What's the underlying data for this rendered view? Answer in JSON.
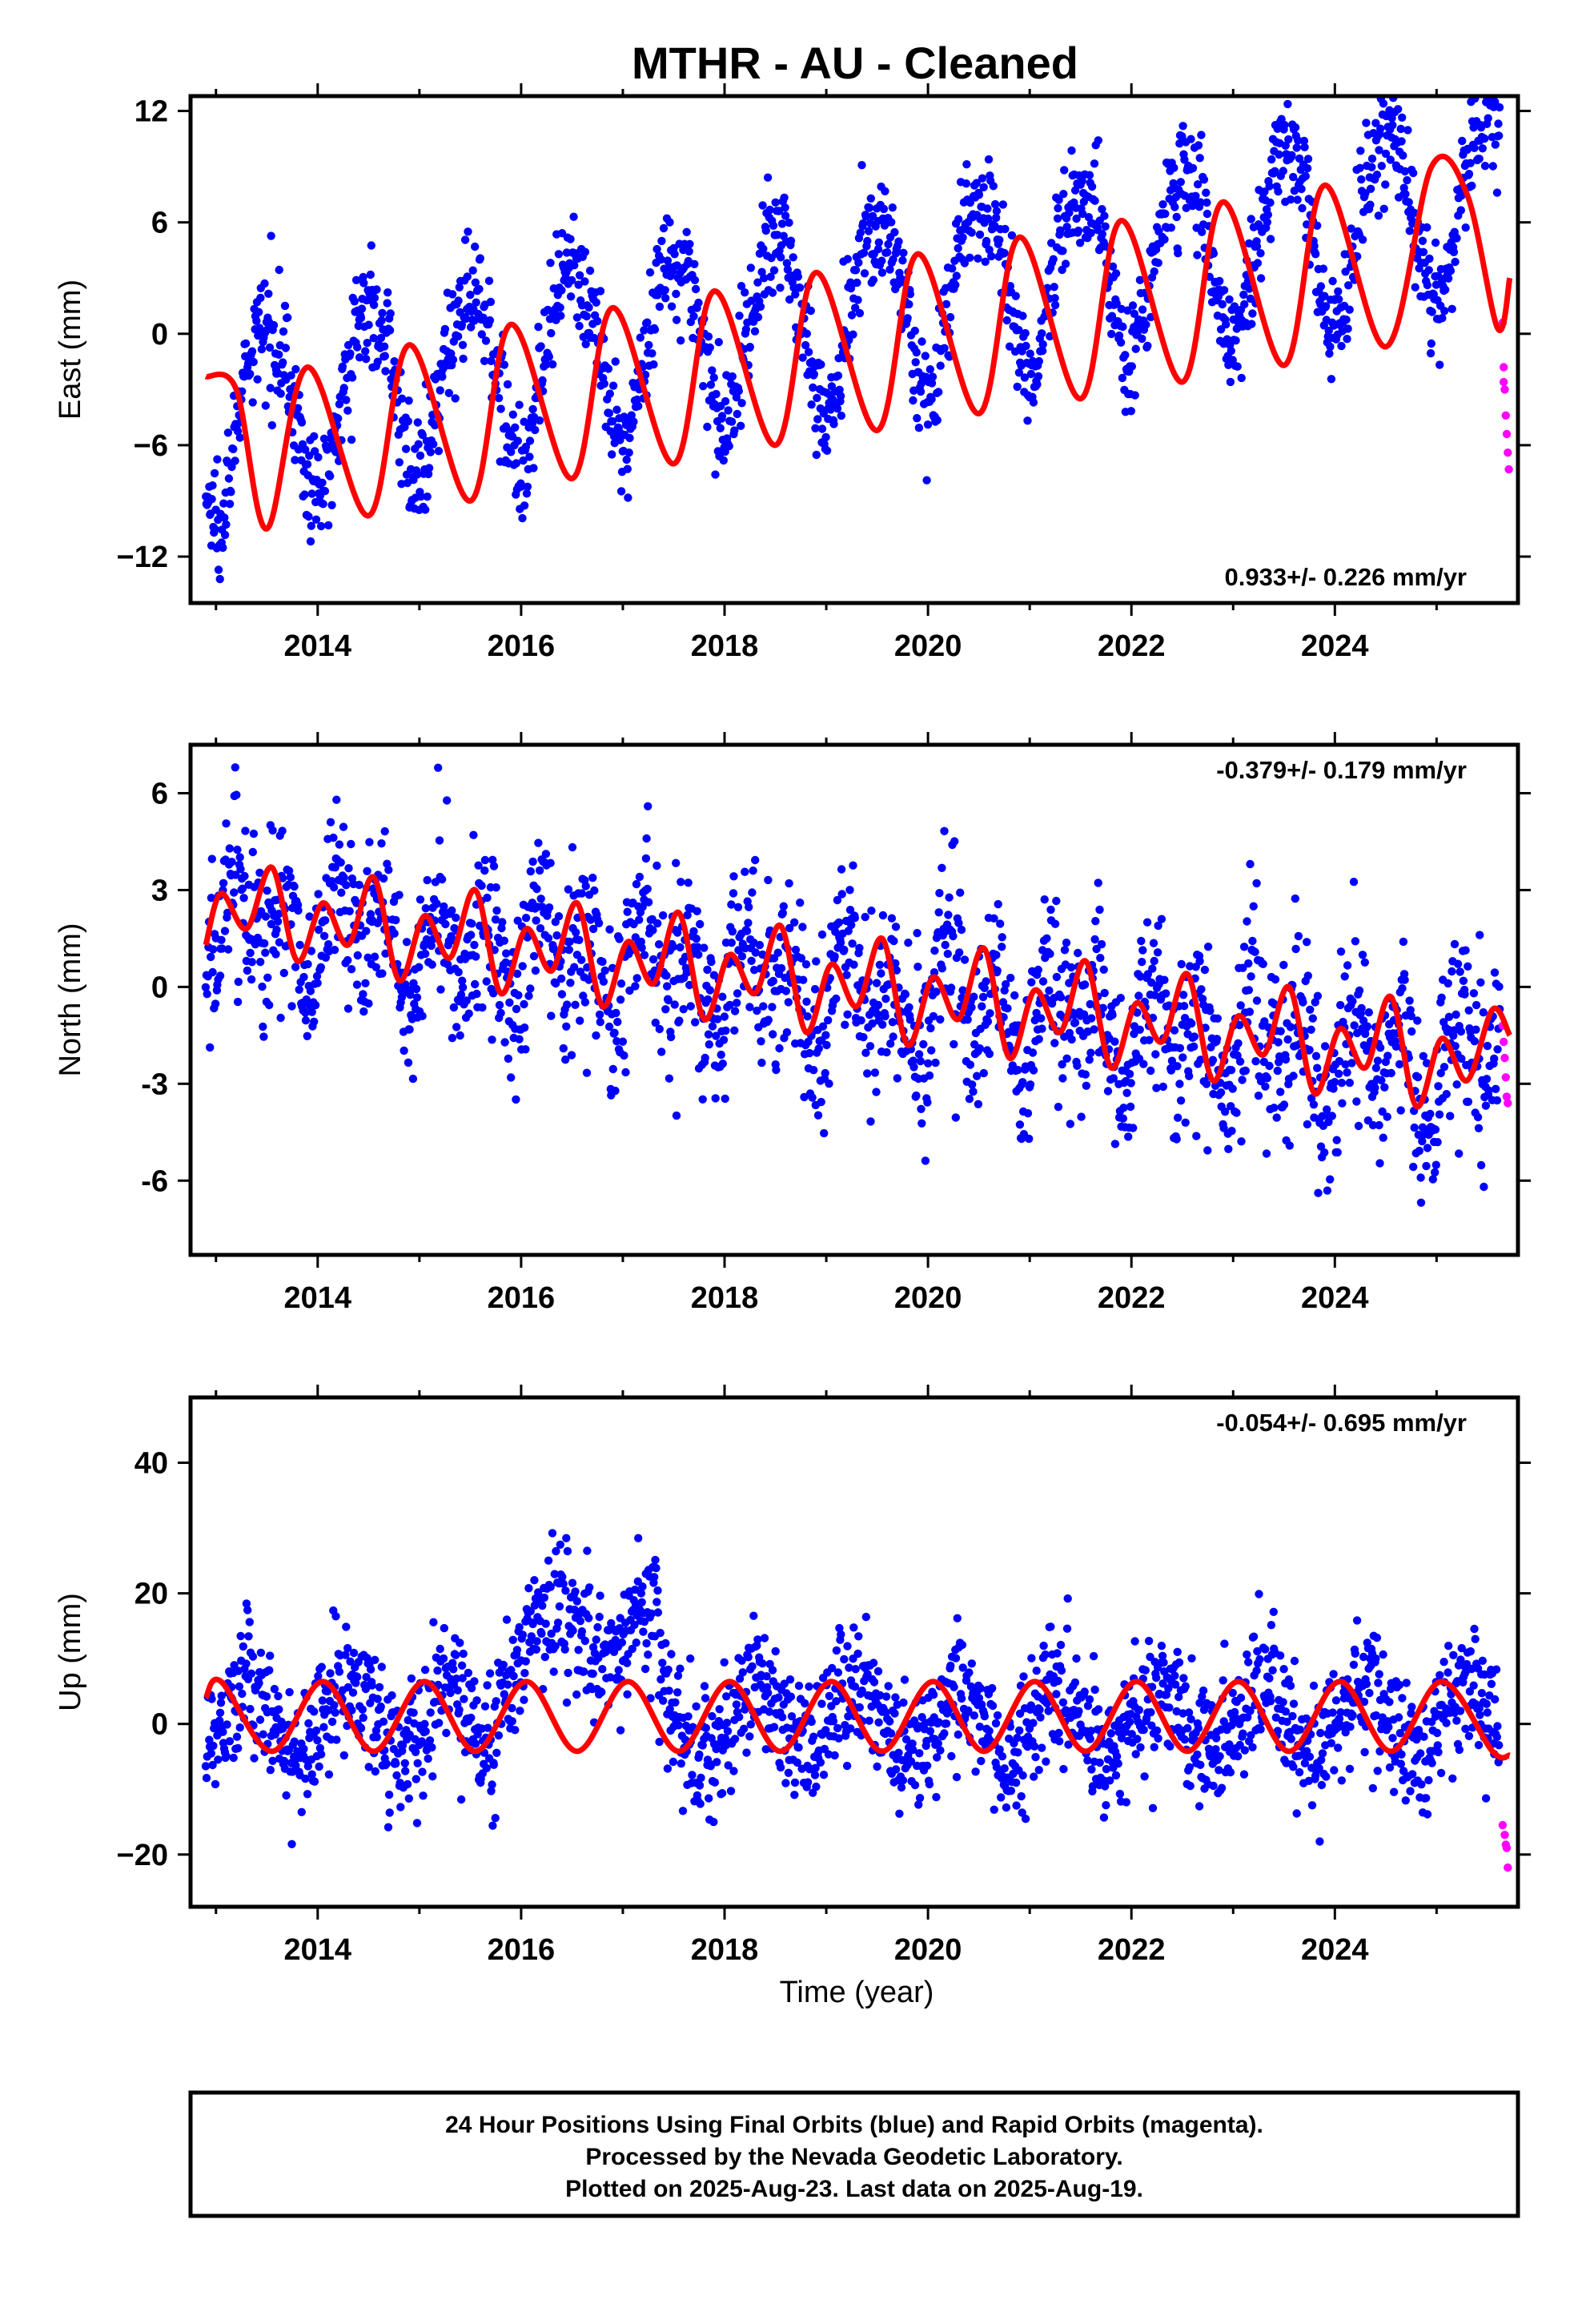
{
  "title": "MTHR  - AU - Cleaned",
  "colors": {
    "final": "#0000ff",
    "rapid": "#ff00ff",
    "model": "#ff0000",
    "frame": "#000000"
  },
  "x_ticks": [
    "2014",
    "2016",
    "2018",
    "2020",
    "2022",
    "2024"
  ],
  "x_label": "Time (year)",
  "footer": {
    "line1": "24 Hour Positions Using Final Orbits (blue) and Rapid Orbits (magenta).",
    "line2": "Processed by the Nevada Geodetic Laboratory.",
    "line3": "Plotted on 2025-Aug-23. Last data on 2025-Aug-19."
  },
  "chart_data": [
    {
      "type": "scatter",
      "component": "East",
      "ylabel": "East (mm)",
      "xlim": [
        2012.75,
        2025.8
      ],
      "ylim": [
        -14.5,
        12.8
      ],
      "y_ticks": [
        "12",
        "6",
        "0",
        "−6",
        "−12"
      ],
      "y_tick_values": [
        12,
        6,
        0,
        -6,
        -12
      ],
      "rate_label": "0.933+/- 0.226 mm/yr",
      "rate_position": "bottom-right",
      "model": {
        "name": "model",
        "values": [
          [
            2012.9,
            -2.3
          ],
          [
            2013.2,
            -3.0
          ],
          [
            2013.5,
            -10.5
          ],
          [
            2013.9,
            -1.8
          ],
          [
            2014.5,
            -9.8
          ],
          [
            2014.9,
            -0.6
          ],
          [
            2015.5,
            -9.0
          ],
          [
            2015.9,
            0.5
          ],
          [
            2016.5,
            -7.8
          ],
          [
            2016.9,
            1.4
          ],
          [
            2017.5,
            -7.0
          ],
          [
            2017.9,
            2.3
          ],
          [
            2018.5,
            -6.0
          ],
          [
            2018.9,
            3.3
          ],
          [
            2019.5,
            -5.2
          ],
          [
            2019.9,
            4.3
          ],
          [
            2020.5,
            -4.3
          ],
          [
            2020.9,
            5.2
          ],
          [
            2021.5,
            -3.5
          ],
          [
            2021.9,
            6.1
          ],
          [
            2022.5,
            -2.6
          ],
          [
            2022.9,
            7.1
          ],
          [
            2023.5,
            -1.7
          ],
          [
            2023.9,
            8.0
          ],
          [
            2024.5,
            -0.7
          ],
          [
            2024.95,
            9.0
          ],
          [
            2025.3,
            7.5
          ],
          [
            2025.6,
            0.3
          ],
          [
            2025.72,
            3.0
          ]
        ]
      },
      "rapid_points": [
        [
          2025.65,
          0.6
        ],
        [
          2025.66,
          -1.8
        ],
        [
          2025.67,
          -3.0
        ],
        [
          2025.68,
          -4.4
        ],
        [
          2025.69,
          -5.4
        ],
        [
          2025.7,
          -6.4
        ],
        [
          2025.71,
          -7.3
        ],
        [
          2025.66,
          -2.6
        ]
      ],
      "final_series": {
        "name": "final",
        "t0": 2012.9,
        "t1": 2025.62,
        "trend_offset": -4.5,
        "trend_rate": 0.933,
        "annual_amp": 4.8,
        "annual_phase": 0.25,
        "semiannual_amp": 0.6,
        "semiannual_phase": 0.1,
        "noise": 1.5,
        "count": 1900
      }
    },
    {
      "type": "scatter",
      "component": "North",
      "ylabel": "North (mm)",
      "xlim": [
        2012.75,
        2025.8
      ],
      "ylim": [
        -8.3,
        7.5
      ],
      "y_ticks": [
        "6",
        "3",
        "0",
        "-3",
        "-6"
      ],
      "y_tick_values": [
        6,
        3,
        0,
        -3,
        -6
      ],
      "rate_label": "-0.379+/- 0.179 mm/yr",
      "rate_position": "top-right",
      "model": {
        "name": "model",
        "values": [
          [
            2012.9,
            1.3
          ],
          [
            2013.05,
            2.9
          ],
          [
            2013.3,
            1.8
          ],
          [
            2013.55,
            3.7
          ],
          [
            2013.8,
            0.8
          ],
          [
            2014.05,
            2.6
          ],
          [
            2014.3,
            1.3
          ],
          [
            2014.55,
            3.4
          ],
          [
            2014.8,
            0.2
          ],
          [
            2015.05,
            2.2
          ],
          [
            2015.3,
            0.9
          ],
          [
            2015.55,
            3.0
          ],
          [
            2015.8,
            -0.2
          ],
          [
            2016.05,
            1.8
          ],
          [
            2016.3,
            0.5
          ],
          [
            2016.55,
            2.6
          ],
          [
            2016.8,
            -0.6
          ],
          [
            2017.05,
            1.4
          ],
          [
            2017.3,
            0.1
          ],
          [
            2017.55,
            2.3
          ],
          [
            2017.8,
            -1.0
          ],
          [
            2018.05,
            1.0
          ],
          [
            2018.3,
            -0.2
          ],
          [
            2018.55,
            1.9
          ],
          [
            2018.8,
            -1.4
          ],
          [
            2019.05,
            0.7
          ],
          [
            2019.3,
            -0.6
          ],
          [
            2019.55,
            1.5
          ],
          [
            2019.8,
            -1.8
          ],
          [
            2020.05,
            0.3
          ],
          [
            2020.3,
            -1.0
          ],
          [
            2020.55,
            1.2
          ],
          [
            2020.8,
            -2.2
          ],
          [
            2021.05,
            -0.1
          ],
          [
            2021.3,
            -1.4
          ],
          [
            2021.55,
            0.8
          ],
          [
            2021.8,
            -2.5
          ],
          [
            2022.05,
            -0.5
          ],
          [
            2022.3,
            -1.7
          ],
          [
            2022.55,
            0.4
          ],
          [
            2022.8,
            -2.9
          ],
          [
            2023.05,
            -0.9
          ],
          [
            2023.3,
            -2.1
          ],
          [
            2023.55,
            0.0
          ],
          [
            2023.8,
            -3.3
          ],
          [
            2024.05,
            -1.3
          ],
          [
            2024.3,
            -2.5
          ],
          [
            2024.55,
            -0.3
          ],
          [
            2024.8,
            -3.7
          ],
          [
            2025.05,
            -1.6
          ],
          [
            2025.3,
            -2.9
          ],
          [
            2025.55,
            -0.7
          ],
          [
            2025.72,
            -1.5
          ]
        ]
      },
      "rapid_points": [
        [
          2025.65,
          -1.2
        ],
        [
          2025.66,
          -1.7
        ],
        [
          2025.67,
          -2.2
        ],
        [
          2025.68,
          -2.8
        ],
        [
          2025.69,
          -3.4
        ],
        [
          2025.7,
          -3.6
        ]
      ],
      "final_series": {
        "name": "final",
        "t0": 2012.9,
        "t1": 2025.62,
        "trend_offset": 2.2,
        "trend_rate": -0.379,
        "annual_amp": 0.8,
        "annual_phase": 0.1,
        "semiannual_amp": 1.3,
        "semiannual_phase": 0.05,
        "noise": 1.4,
        "count": 1900
      }
    },
    {
      "type": "scatter",
      "component": "Up",
      "ylabel": "Up (mm)",
      "xlim": [
        2012.75,
        2025.8
      ],
      "ylim": [
        -28,
        50
      ],
      "y_ticks": [
        "40",
        "20",
        "0",
        "−20"
      ],
      "y_tick_values": [
        40,
        20,
        0,
        -20
      ],
      "rate_label": "-0.054+/- 0.695 mm/yr",
      "rate_position": "top-right",
      "model": {
        "name": "model",
        "values": [
          [
            2012.9,
            4.0
          ],
          [
            2013.05,
            6.5
          ],
          [
            2013.55,
            -4.2
          ],
          [
            2014.05,
            6.5
          ],
          [
            2014.55,
            -4.2
          ],
          [
            2015.05,
            6.5
          ],
          [
            2015.55,
            -4.2
          ],
          [
            2016.05,
            6.5
          ],
          [
            2016.55,
            -4.2
          ],
          [
            2017.05,
            6.5
          ],
          [
            2017.55,
            -4.2
          ],
          [
            2018.05,
            6.5
          ],
          [
            2018.55,
            -4.2
          ],
          [
            2019.05,
            6.5
          ],
          [
            2019.55,
            -4.2
          ],
          [
            2020.05,
            6.5
          ],
          [
            2020.55,
            -4.2
          ],
          [
            2021.05,
            6.5
          ],
          [
            2021.55,
            -4.2
          ],
          [
            2022.05,
            6.5
          ],
          [
            2022.55,
            -4.2
          ],
          [
            2023.05,
            6.5
          ],
          [
            2023.55,
            -4.2
          ],
          [
            2024.05,
            6.5
          ],
          [
            2024.55,
            -4.2
          ],
          [
            2025.05,
            6.5
          ],
          [
            2025.55,
            -4.2
          ],
          [
            2025.72,
            -4.8
          ]
        ]
      },
      "rapid_points": [
        [
          2025.65,
          -15.5
        ],
        [
          2025.67,
          -17.0
        ],
        [
          2025.68,
          -18.5
        ],
        [
          2025.69,
          -19.0
        ],
        [
          2025.7,
          -22.0
        ]
      ],
      "final_series": {
        "name": "final",
        "t0": 2012.9,
        "t1": 2025.62,
        "trend_offset": 1.0,
        "trend_rate": -0.054,
        "annual_amp": 5.4,
        "annual_phase": 0.05,
        "semiannual_amp": 0.0,
        "semiannual_phase": 0.0,
        "noise": 5.0,
        "count": 1900,
        "bump": {
          "t0": 2015.75,
          "t1": 2017.35,
          "level": 14.0
        }
      }
    }
  ]
}
